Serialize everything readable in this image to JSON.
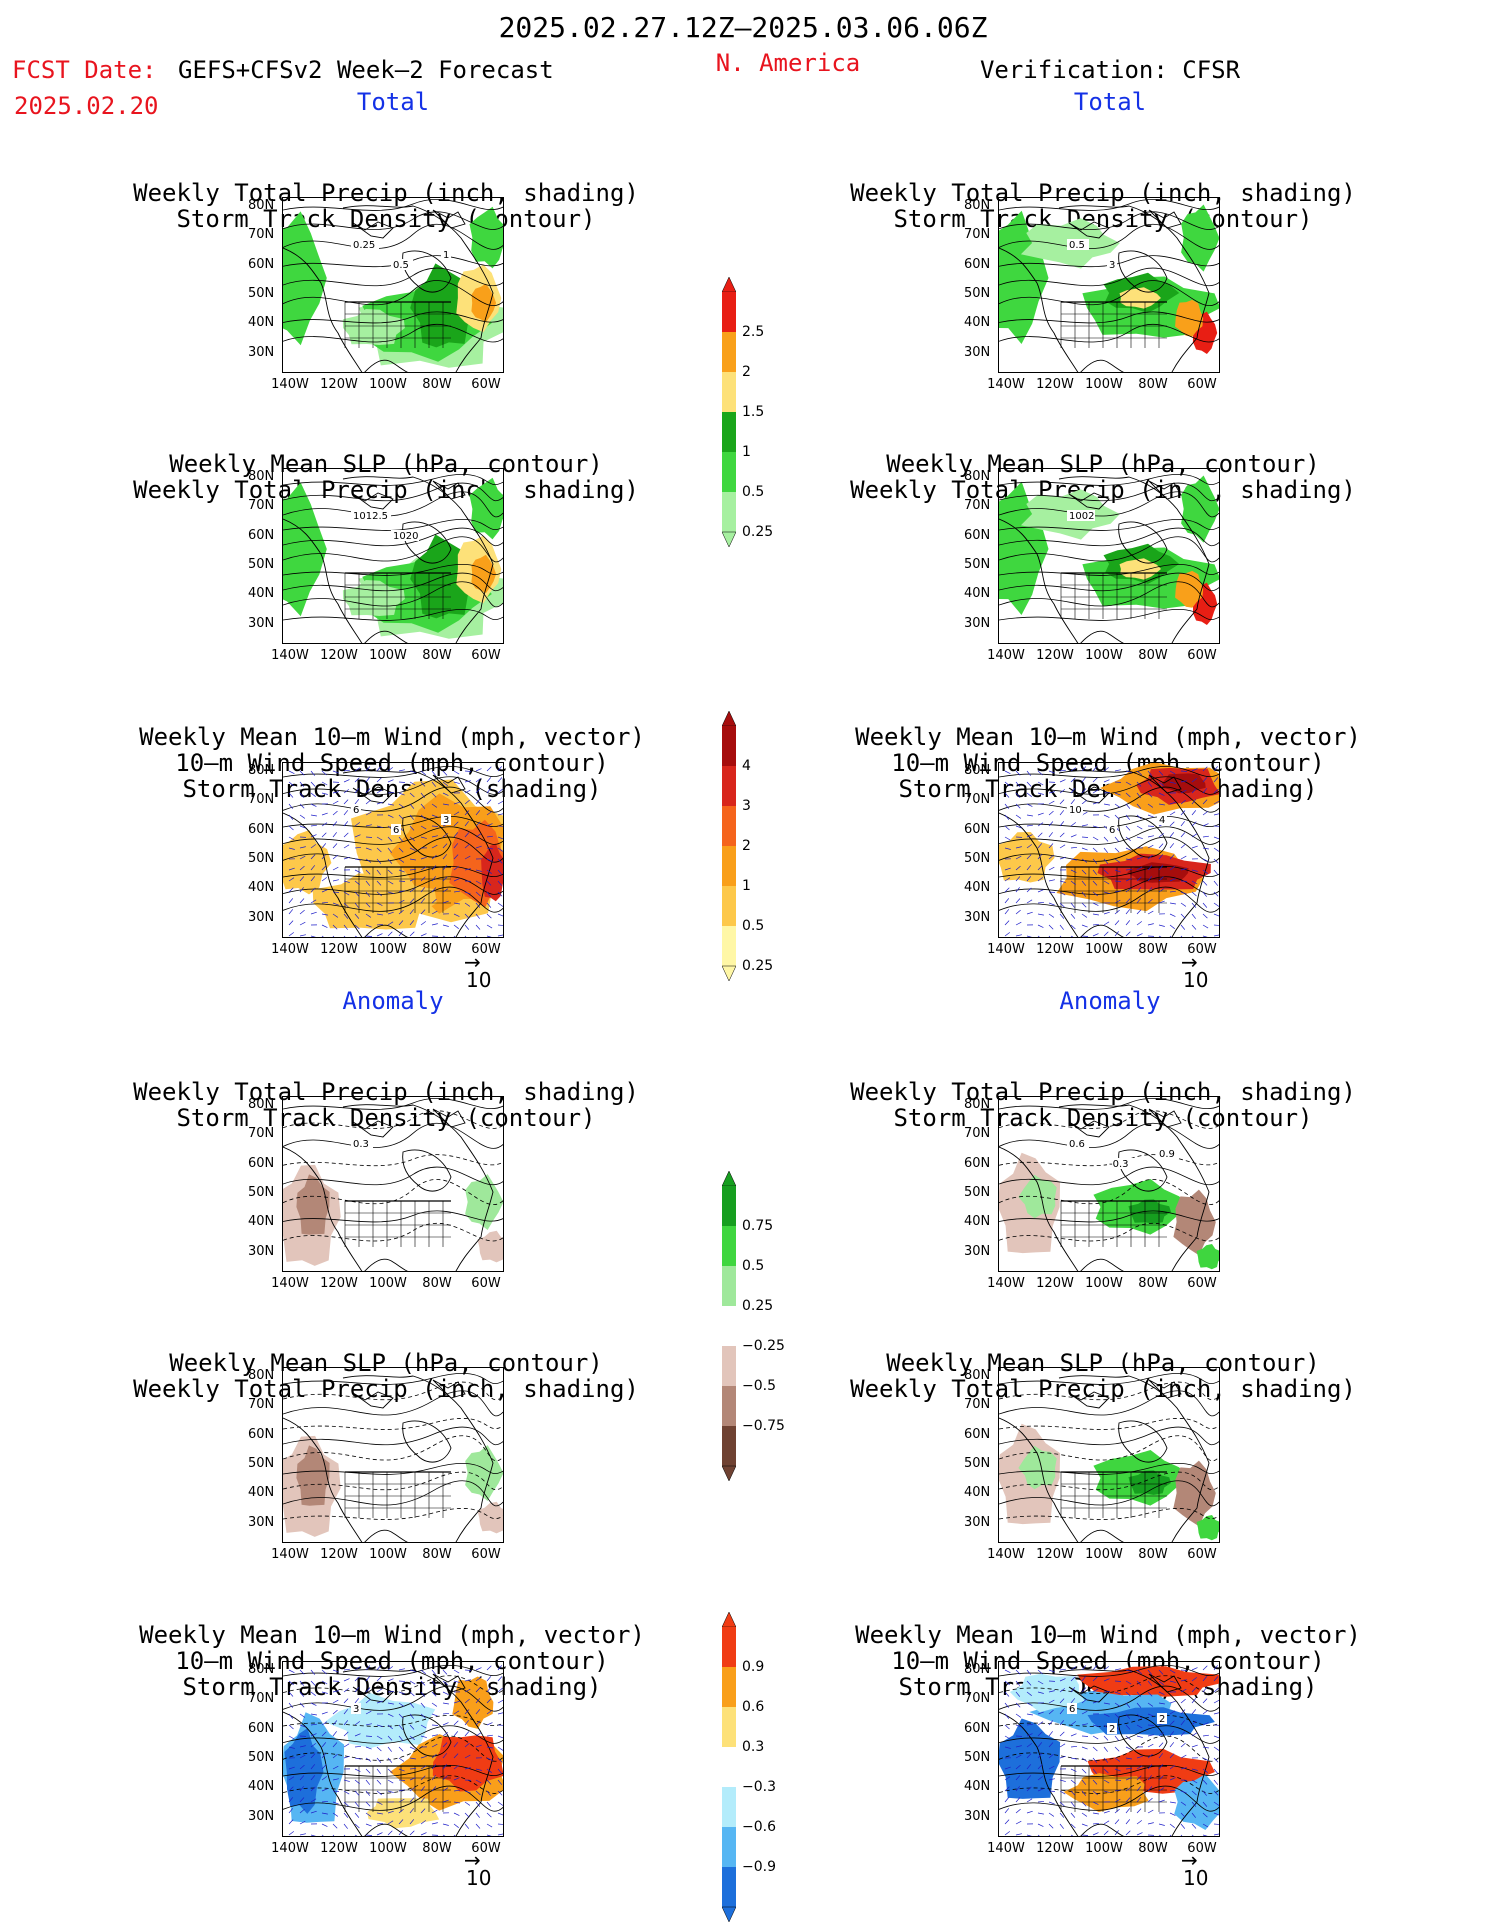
{
  "header": {
    "period": "2025.02.27.12Z–2025.03.06.06Z",
    "fcst_date_label": "FCST Date: ",
    "model": "GEFS+CFSv2 Week–2 Forecast",
    "fcst_date": "2025.02.20",
    "region": "N. America",
    "verification": "Verification: CFSR"
  },
  "sections": {
    "total": "Total",
    "anomaly": "Anomaly"
  },
  "titles": {
    "precip_storm": [
      "Weekly Total Precip (inch, shading)",
      "Storm Track Density (contour)"
    ],
    "slp_precip": [
      "Weekly Mean SLP (hPa, contour)",
      "Weekly Total Precip (inch, shading)"
    ],
    "wind_storm": [
      "Weekly Mean 10–m Wind (mph, vector)",
      "10–m Wind Speed (mph, contour)",
      "Storm Track Density (shading)"
    ]
  },
  "axes": {
    "lat_labels": [
      "80N",
      "70N",
      "60N",
      "50N",
      "40N",
      "30N"
    ],
    "lon_labels": [
      "140W",
      "120W",
      "100W",
      "80W",
      "60W"
    ]
  },
  "vector_ref": "10",
  "colorbars": {
    "precip_total": {
      "labels": [
        "2.5",
        "2",
        "1.5",
        "1",
        "0.5",
        "0.25"
      ],
      "colors": [
        "#e81e14",
        "#f9a01a",
        "#fde179",
        "#1aa51a",
        "#3fd73f",
        "#a6f0a0"
      ]
    },
    "storm_total": {
      "labels": [
        "4",
        "3",
        "2",
        "1",
        "0.5",
        "0.25"
      ],
      "colors": [
        "#a60d0d",
        "#d8261c",
        "#f5641c",
        "#f99f1a",
        "#fdc84a",
        "#fff7a6"
      ]
    },
    "precip_anom": {
      "labels": [
        "0.75",
        "0.5",
        "0.25",
        "−0.25",
        "−0.5",
        "−0.75"
      ],
      "colors": [
        "#169e1f",
        "#3fd63f",
        "#9fe89b",
        "#ffffff",
        "#e2c5bb",
        "#b38777",
        "#6f4232"
      ]
    },
    "storm_anom": {
      "labels": [
        "0.9",
        "0.6",
        "0.3",
        "−0.3",
        "−0.6",
        "−0.9"
      ],
      "colors": [
        "#f03c14",
        "#f99f1a",
        "#fde179",
        "#ffffff",
        "#b3ecfb",
        "#56b6f3",
        "#1d6fdb"
      ]
    }
  },
  "panel_labels": {
    "fc_precip_total": [
      "0.25",
      "0.5",
      "1"
    ],
    "fc_slp_total": [
      "1012.5",
      "1020"
    ],
    "fc_wind_total": [
      "6",
      "6",
      "3"
    ],
    "ob_precip_total": [
      "0.5",
      "3"
    ],
    "ob_slp_total": [
      "1002"
    ],
    "ob_wind_total": [
      "10",
      "6",
      "4"
    ],
    "fc_precip_anom": [
      "0.3"
    ],
    "ob_precip_anom": [
      "0.6",
      "-0.3",
      "0.9"
    ],
    "fc_wind_anom": [
      "3"
    ],
    "ob_wind_anom": [
      "6",
      "2",
      "2"
    ]
  }
}
